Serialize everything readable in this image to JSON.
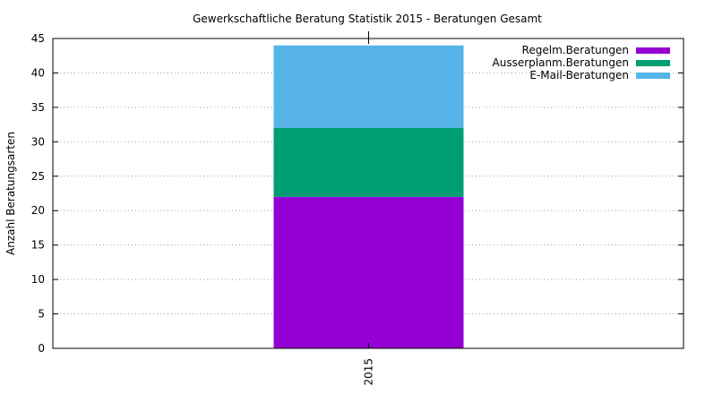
{
  "chart_data": {
    "type": "bar",
    "stacked": true,
    "title": "Gewerkschaftliche Beratung Statistik 2015 - Beratungen Gesamt",
    "xlabel": "",
    "ylabel": "Anzahl Beratungsarten",
    "categories": [
      "2015"
    ],
    "ylim": [
      0,
      45
    ],
    "yticks": [
      0,
      5,
      10,
      15,
      20,
      25,
      30,
      35,
      40,
      45
    ],
    "grid": true,
    "legend_position": "top-right",
    "series": [
      {
        "name": "Regelm.Beratungen",
        "values": [
          22
        ],
        "color": "#9400d3"
      },
      {
        "name": "Ausserplanm.Beratungen",
        "values": [
          10
        ],
        "color": "#009e73"
      },
      {
        "name": "E-Mail-Beratungen",
        "values": [
          12
        ],
        "color": "#56b4e9"
      }
    ]
  }
}
